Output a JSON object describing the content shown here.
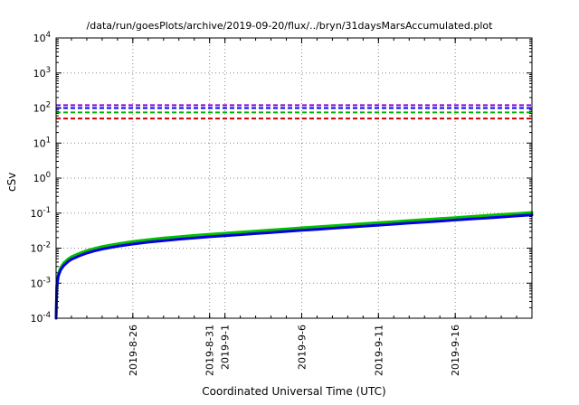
{
  "chart_data": {
    "type": "line",
    "title": "/data/run/goesPlots/archive/2019-09-20/flux/../bryn/31daysMarsAccumulated.plot",
    "xlabel": "Coordinated Universal Time (UTC)",
    "ylabel": "cSv",
    "grid": "dotted",
    "legend": "none",
    "x_axis": {
      "span_days": 31,
      "ticks": [
        {
          "day": 5,
          "label": "2019-8-26"
        },
        {
          "day": 10,
          "label": "2019-8-31"
        },
        {
          "day": 11,
          "label": "2019-9-1"
        },
        {
          "day": 16,
          "label": "2019-9-6"
        },
        {
          "day": 21,
          "label": "2019-9-11"
        },
        {
          "day": 26,
          "label": "2019-9-16"
        }
      ]
    },
    "y_axis": {
      "scale": "log",
      "min": 0.0001,
      "max": 10000,
      "tick_exponents": [
        4,
        3,
        2,
        1,
        0,
        -1,
        -2,
        -3,
        -4
      ]
    },
    "thresholds": [
      {
        "name": "limit-purple",
        "value": 120,
        "color": "#9400d3",
        "style": "dashed"
      },
      {
        "name": "limit-blue",
        "value": 100,
        "color": "#0000ff",
        "style": "dashed"
      },
      {
        "name": "limit-green",
        "value": 75,
        "color": "#00b000",
        "style": "dashed"
      },
      {
        "name": "limit-red",
        "value": 50,
        "color": "#d00000",
        "style": "dashed"
      }
    ],
    "series": [
      {
        "name": "accumulated-dose-upper-green",
        "color": "#00c000",
        "width": 3,
        "x": [
          0,
          0.05,
          0.15,
          0.3,
          0.5,
          0.8,
          1,
          1.5,
          2,
          2.5,
          3,
          4,
          5,
          6,
          7,
          8,
          9,
          10,
          11,
          12,
          13,
          14,
          15,
          16,
          17,
          18,
          19,
          20,
          21,
          22,
          23,
          24,
          25,
          26,
          27,
          28,
          29,
          30,
          31
        ],
        "y": [
          0.0001,
          0.0009,
          0.0019,
          0.0028,
          0.0038,
          0.005,
          0.0057,
          0.0071,
          0.0085,
          0.0098,
          0.0111,
          0.0133,
          0.0155,
          0.0175,
          0.0194,
          0.0212,
          0.0231,
          0.0249,
          0.0267,
          0.0287,
          0.0308,
          0.033,
          0.0354,
          0.038,
          0.0407,
          0.0435,
          0.0466,
          0.0499,
          0.0533,
          0.0571,
          0.0611,
          0.0654,
          0.0699,
          0.0747,
          0.0799,
          0.0854,
          0.0913,
          0.0976,
          0.1043
        ]
      },
      {
        "name": "accumulated-dose-lower-blue",
        "color": "#0000e0",
        "width": 3,
        "x": [
          0,
          0.05,
          0.15,
          0.3,
          0.5,
          0.8,
          1,
          1.5,
          2,
          2.5,
          3,
          4,
          5,
          6,
          7,
          8,
          9,
          10,
          11,
          12,
          13,
          14,
          15,
          16,
          17,
          18,
          19,
          20,
          21,
          22,
          23,
          24,
          25,
          26,
          27,
          28,
          29,
          30,
          31
        ],
        "y": [
          0.0001,
          0.0008,
          0.0016,
          0.0024,
          0.0032,
          0.0042,
          0.0048,
          0.006,
          0.0072,
          0.0083,
          0.0094,
          0.0113,
          0.0131,
          0.0148,
          0.0164,
          0.018,
          0.0196,
          0.0211,
          0.0226,
          0.0243,
          0.0261,
          0.028,
          0.03,
          0.0322,
          0.0345,
          0.0369,
          0.0395,
          0.0423,
          0.0452,
          0.0484,
          0.0518,
          0.0554,
          0.0592,
          0.0633,
          0.0677,
          0.0724,
          0.0774,
          0.0827,
          0.0884
        ]
      }
    ]
  }
}
